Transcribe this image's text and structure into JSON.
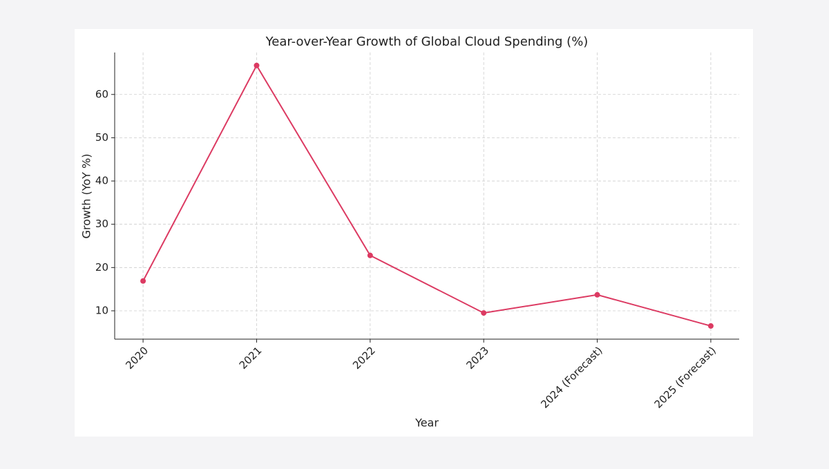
{
  "chart_data": {
    "type": "line",
    "title": "Year-over-Year Growth of Global Cloud Spending (%)",
    "x_label": "Year",
    "y_label": "Growth (YoY %)",
    "categories": [
      "2020",
      "2021",
      "2022",
      "2023",
      "2024 (Forecast)",
      "2025 (Forecast)"
    ],
    "values": [
      16.9,
      66.7,
      22.8,
      9.5,
      13.7,
      6.5
    ],
    "color": "#dc3a62",
    "ylim": [
      3.45,
      69.7
    ],
    "yticks": [
      10,
      20,
      30,
      40,
      50,
      60
    ],
    "grid": true
  }
}
